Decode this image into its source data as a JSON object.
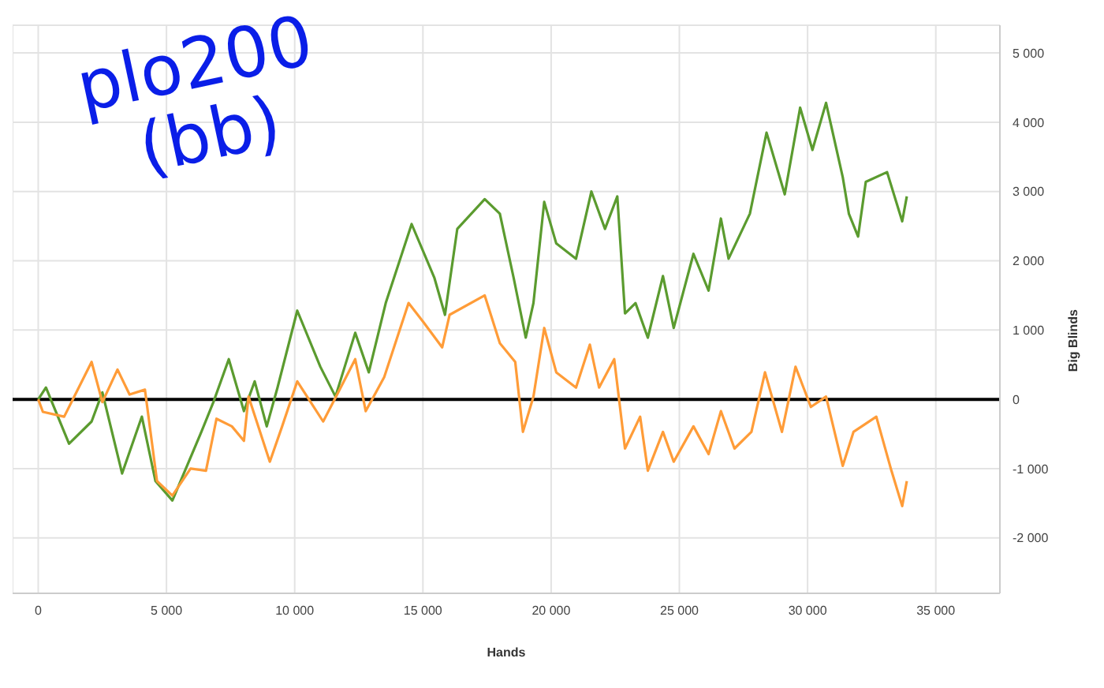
{
  "chart_data": {
    "type": "line",
    "xlabel": "Hands",
    "ylabel": "Big Blinds",
    "annotations": [
      "plo200 (bb)"
    ],
    "xlim": [
      -1000,
      37500
    ],
    "ylim": [
      -2800,
      5400
    ],
    "xticks": [
      0,
      {
        "value": 5000,
        "label": "5 000"
      },
      {
        "value": 10000,
        "label": "10 000"
      },
      {
        "value": 15000,
        "label": "15 000"
      },
      {
        "value": 20000,
        "label": "20 000"
      },
      {
        "value": 25000,
        "label": "25 000"
      },
      {
        "value": 30000,
        "label": "30 000"
      },
      {
        "value": 35000,
        "label": "35 000"
      }
    ],
    "yticks": [
      {
        "value": -2000,
        "label": "-2 000"
      },
      {
        "value": -1000,
        "label": "-1 000"
      },
      0,
      {
        "value": 1000,
        "label": "1 000"
      },
      {
        "value": 2000,
        "label": "2 000"
      },
      {
        "value": 3000,
        "label": "3 000"
      },
      {
        "value": 4000,
        "label": "4 000"
      },
      {
        "value": 5000,
        "label": "5 000"
      }
    ],
    "grid": true,
    "marker": "none",
    "line_style": "solid",
    "ref_lines": [
      {
        "axis": "y",
        "value": 0,
        "label": null,
        "color": "#000000"
      }
    ],
    "series": [
      {
        "color": "#5b9b2f",
        "x": [
          0,
          300,
          1200,
          2080,
          2500,
          3270,
          4040,
          4570,
          5230,
          6360,
          6830,
          7430,
          8020,
          8440,
          8910,
          9330,
          10100,
          11000,
          11590,
          12360,
          12890,
          13550,
          14560,
          15450,
          15860,
          16340,
          17410,
          18000,
          18540,
          19010,
          19310,
          19730,
          20200,
          20970,
          21570,
          22100,
          22580,
          22880,
          23290,
          23770,
          24360,
          24780,
          25550,
          26140,
          26620,
          26920,
          27750,
          28400,
          29110,
          29710,
          30190,
          30720,
          31370,
          31610,
          31970,
          32270,
          33100,
          33690,
          33870
        ],
        "values": [
          0,
          170,
          -640,
          -320,
          100,
          -1070,
          -250,
          -1180,
          -1460,
          -470,
          -40,
          580,
          -170,
          260,
          -390,
          170,
          1280,
          470,
          40,
          960,
          390,
          1390,
          2530,
          1750,
          1220,
          2460,
          2890,
          2680,
          1750,
          890,
          1390,
          2850,
          2250,
          2030,
          3000,
          2460,
          2930,
          1240,
          1390,
          890,
          1780,
          1030,
          2100,
          1570,
          2610,
          2030,
          2680,
          3850,
          2960,
          4210,
          3600,
          4280,
          3210,
          2680,
          2350,
          3140,
          3280,
          2570,
          2930
        ]
      },
      {
        "color": "#ff9c38",
        "x": [
          0,
          180,
          1010,
          2080,
          2500,
          3090,
          3560,
          4160,
          4630,
          5230,
          5940,
          6540,
          6950,
          7550,
          8020,
          8200,
          9030,
          9510,
          10100,
          11110,
          11710,
          12360,
          12770,
          13490,
          14440,
          15030,
          15750,
          16040,
          17410,
          18000,
          18600,
          18900,
          19310,
          19730,
          20200,
          20970,
          21510,
          21870,
          22460,
          22880,
          23470,
          23770,
          24360,
          24780,
          25550,
          26140,
          26620,
          27150,
          27810,
          28340,
          29000,
          29530,
          30130,
          30720,
          31370,
          31790,
          32680,
          33270,
          33690,
          33870
        ],
        "values": [
          0,
          -180,
          -250,
          540,
          -40,
          430,
          70,
          140,
          -1180,
          -1390,
          -1000,
          -1030,
          -280,
          -390,
          -600,
          40,
          -900,
          -390,
          260,
          -320,
          110,
          580,
          -170,
          320,
          1390,
          1110,
          750,
          1220,
          1500,
          810,
          540,
          -470,
          40,
          1030,
          390,
          170,
          790,
          170,
          580,
          -710,
          -250,
          -1030,
          -470,
          -900,
          -390,
          -790,
          -170,
          -710,
          -470,
          390,
          -470,
          470,
          -110,
          40,
          -960,
          -470,
          -250,
          -1030,
          -1540,
          -1180
        ]
      }
    ]
  }
}
